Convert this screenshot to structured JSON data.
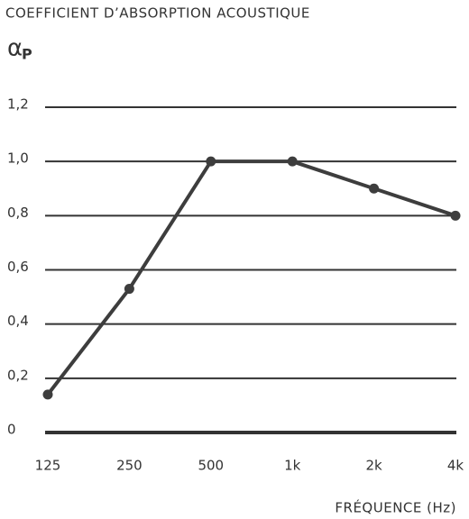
{
  "chart_data": {
    "type": "line",
    "title": "COEFFICIENT D’ABSORPTION ACOUSTIQUE",
    "ylabel": "α",
    "ylabel_subscript": "P",
    "xlabel": "FRÉQUENCE (Hz)",
    "categories": [
      "125",
      "250",
      "500",
      "1k",
      "2k",
      "4k"
    ],
    "series": [
      {
        "name": "αP",
        "color": "#3d3d3d",
        "values": [
          0.14,
          0.53,
          1.0,
          1.0,
          0.9,
          0.8
        ]
      }
    ],
    "ylim": [
      0,
      1.2
    ],
    "yticks": [
      0,
      {
        "value": 0.2,
        "label": "0,2"
      },
      {
        "value": 0.4,
        "label": "0,4"
      },
      {
        "value": 0.6,
        "label": "0,6"
      },
      {
        "value": 0.8,
        "label": "0,8"
      },
      {
        "value": 1.0,
        "label": "1,0"
      },
      {
        "value": 1.2,
        "label": "1,2"
      }
    ],
    "grid": true
  }
}
